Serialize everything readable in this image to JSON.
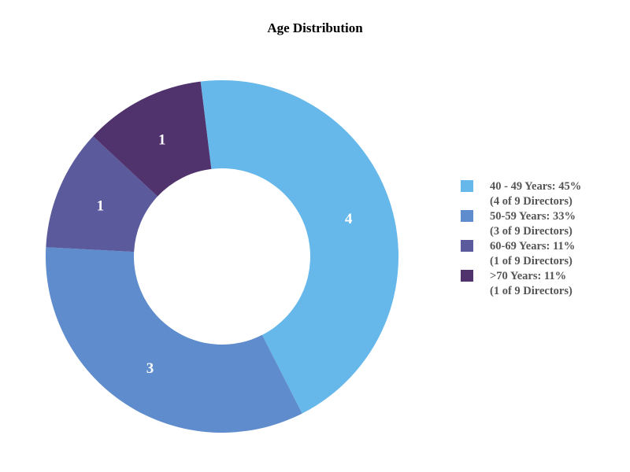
{
  "chart_data": {
    "type": "pie",
    "variant": "donut",
    "title": "Age Distribution",
    "legend_position": "right",
    "slices": [
      {
        "name": "40 - 49 Years",
        "value": 4,
        "label": "4",
        "legend_line1": "40 - 49 Years: 45%",
        "legend_line2": "(4 of 9 Directors)",
        "color": "#66b8eb"
      },
      {
        "name": "50-59 Years",
        "value": 3,
        "label": "3",
        "legend_line1": "50-59 Years: 33%",
        "legend_line2": "(3 of 9 Directors)",
        "color": "#5e8ccc"
      },
      {
        "name": "60-69 Years",
        "value": 1,
        "label": "1",
        "legend_line1": "60-69 Years: 11%",
        "legend_line2": "(1 of 9 Directors)",
        "color": "#5a5a9c"
      },
      {
        "name": ">70 Years",
        "value": 1,
        "label": "1",
        "legend_line1": ">70 Years: 11%",
        "legend_line2": "(1 of 9 Directors)",
        "color": "#50326c"
      }
    ]
  }
}
